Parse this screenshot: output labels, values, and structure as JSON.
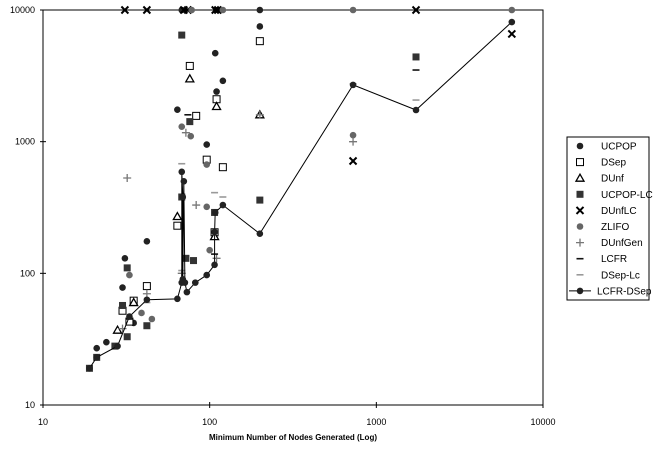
{
  "chart_data": {
    "type": "scatter",
    "title": "",
    "xlabel": "Minimum Number of Nodes Generated (Log)",
    "ylabel": "",
    "xscale": "log",
    "yscale": "log",
    "xlim": [
      10,
      10000
    ],
    "ylim": [
      10,
      10000
    ],
    "xticks": [
      "10",
      "100",
      "1000",
      "10000"
    ],
    "yticks": [
      "10",
      "100",
      "1000",
      "10000"
    ],
    "grid": false,
    "legend_position": "right",
    "series": [
      {
        "name": "UCPOP",
        "marker": "circle",
        "color": "#222222",
        "points": [
          [
            21,
            27
          ],
          [
            24,
            30
          ],
          [
            30,
            78
          ],
          [
            31,
            130
          ],
          [
            35,
            42
          ],
          [
            42,
            175
          ],
          [
            64,
            1750
          ],
          [
            96,
            950
          ],
          [
            108,
            4700
          ],
          [
            110,
            2400
          ],
          [
            120,
            2900
          ],
          [
            200,
            7500
          ],
          [
            68,
            10000
          ],
          [
            115,
            10000
          ],
          [
            200,
            10000
          ]
        ]
      },
      {
        "name": "DSep",
        "marker": "square-open",
        "color": "#000000",
        "points": [
          [
            30,
            52
          ],
          [
            33,
            43
          ],
          [
            35,
            62
          ],
          [
            42,
            80
          ],
          [
            64,
            230
          ],
          [
            76,
            3760
          ],
          [
            83,
            1570
          ],
          [
            96,
            730
          ],
          [
            107,
            205
          ],
          [
            110,
            2100
          ],
          [
            120,
            640
          ],
          [
            200,
            5800
          ]
        ]
      },
      {
        "name": "DUnf",
        "marker": "triangle-open",
        "color": "#000000",
        "points": [
          [
            28,
            37
          ],
          [
            35,
            60
          ],
          [
            64,
            270
          ],
          [
            76,
            3000
          ],
          [
            107,
            190
          ],
          [
            110,
            1850
          ],
          [
            200,
            1600
          ]
        ]
      },
      {
        "name": "UCPOP-LC",
        "marker": "square",
        "color": "#333333",
        "points": [
          [
            19,
            19
          ],
          [
            21,
            23
          ],
          [
            27,
            28
          ],
          [
            30,
            57
          ],
          [
            32,
            33
          ],
          [
            32,
            110
          ],
          [
            42,
            40
          ],
          [
            68,
            380
          ],
          [
            68,
            6450
          ],
          [
            72,
            130
          ],
          [
            76,
            1420
          ],
          [
            80,
            125
          ],
          [
            107,
            290
          ],
          [
            200,
            360
          ],
          [
            1730,
            4400
          ]
        ]
      },
      {
        "name": "DUnfLC",
        "marker": "x",
        "color": "#000000",
        "points": [
          [
            31,
            10000
          ],
          [
            42,
            10000
          ],
          [
            70,
            10000
          ],
          [
            74,
            10000
          ],
          [
            108,
            10000
          ],
          [
            112,
            10000
          ],
          [
            1730,
            10000
          ],
          [
            725,
            713
          ],
          [
            6500,
            6580
          ]
        ]
      },
      {
        "name": "ZLIFO",
        "marker": "circle",
        "color": "#666666",
        "points": [
          [
            33,
            97
          ],
          [
            39,
            50
          ],
          [
            45,
            45
          ],
          [
            68,
            1300
          ],
          [
            77,
            1100
          ],
          [
            96,
            670
          ],
          [
            96,
            320
          ],
          [
            100,
            150
          ],
          [
            725,
            1120
          ],
          [
            725,
            10000
          ],
          [
            6500,
            10000
          ],
          [
            78,
            10000
          ],
          [
            120,
            10000
          ]
        ]
      },
      {
        "name": "DUnfGen",
        "marker": "plus",
        "color": "#777777",
        "points": [
          [
            30,
            38
          ],
          [
            32,
            530
          ],
          [
            42,
            70
          ],
          [
            68,
            100
          ],
          [
            72,
            1170
          ],
          [
            83,
            330
          ],
          [
            110,
            130
          ],
          [
            200,
            1600
          ],
          [
            725,
            1000
          ]
        ]
      },
      {
        "name": "LCFR",
        "marker": "dash",
        "color": "#111111",
        "points": [
          [
            33,
            45
          ],
          [
            74,
            1600
          ],
          [
            107,
            140
          ],
          [
            1730,
            3500
          ]
        ]
      },
      {
        "name": "DSep-Lc",
        "marker": "dash",
        "color": "#999999",
        "points": [
          [
            42,
            60
          ],
          [
            68,
            105
          ],
          [
            68,
            680
          ],
          [
            107,
            410
          ],
          [
            120,
            380
          ],
          [
            725,
            2750
          ],
          [
            1730,
            2070
          ]
        ]
      },
      {
        "name": "LCFR-DSep",
        "marker": "circle-line",
        "color": "#222222",
        "points": [
          [
            19,
            19
          ],
          [
            21,
            23
          ],
          [
            28,
            28
          ],
          [
            33,
            47
          ],
          [
            42,
            63
          ],
          [
            64,
            64
          ],
          [
            68,
            85
          ],
          [
            68,
            590
          ],
          [
            69,
            380
          ],
          [
            69,
            90
          ],
          [
            70,
            500
          ],
          [
            71,
            85
          ],
          [
            73,
            72
          ],
          [
            82,
            85
          ],
          [
            96,
            97
          ],
          [
            107,
            116
          ],
          [
            107,
            206
          ],
          [
            108,
            290
          ],
          [
            120,
            330
          ],
          [
            200,
            200
          ],
          [
            725,
            2700
          ],
          [
            1730,
            1740
          ],
          [
            6500,
            8100
          ]
        ]
      }
    ]
  }
}
